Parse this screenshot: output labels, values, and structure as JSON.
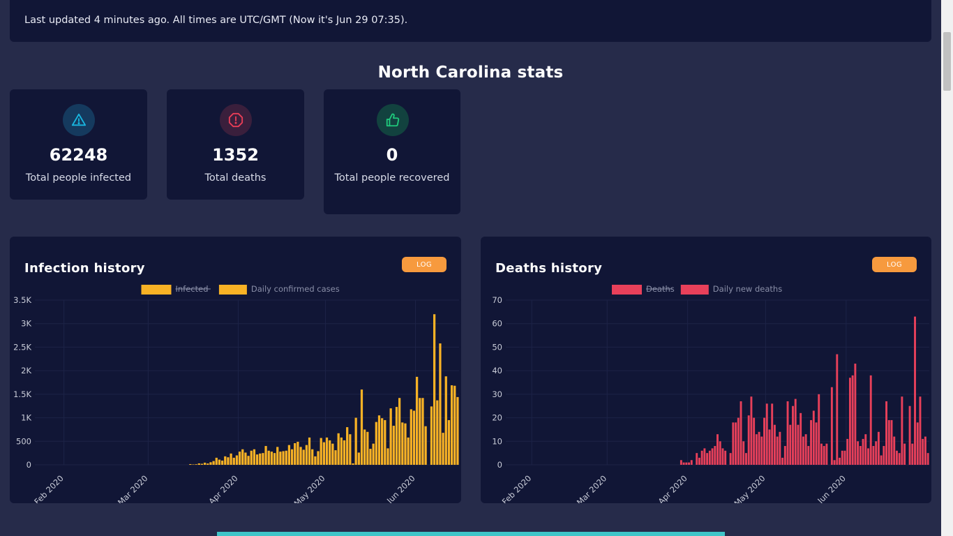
{
  "header": {
    "updated_text": "Last updated 4 minutes ago. All times are UTC/GMT (Now it's Jun 29 07:35)."
  },
  "page_title": "North Carolina stats",
  "stats": {
    "infected": {
      "value": "62248",
      "label": "Total people infected",
      "icon": "warning-icon",
      "color": "#19b6e0"
    },
    "deaths": {
      "value": "1352",
      "label": "Total deaths",
      "icon": "alert-octagon-icon",
      "color": "#ea3e57"
    },
    "recovered": {
      "value": "0",
      "label": "Total people recovered",
      "icon": "thumbs-up-icon",
      "color": "#1fc97c"
    }
  },
  "log_label": "LOG",
  "chart_data": [
    {
      "type": "bar",
      "title": "Infection history",
      "legend": [
        {
          "label": "Infected",
          "hidden": true
        },
        {
          "label": "Daily confirmed cases",
          "hidden": false
        }
      ],
      "color": "#f8b225",
      "x_start": "2020-01-22",
      "x_tick_labels": [
        "Feb 2020",
        "Mar 2020",
        "Apr 2020",
        "May 2020",
        "Jun 2020"
      ],
      "x_tick_dates": [
        "2020-02-01",
        "2020-03-01",
        "2020-04-01",
        "2020-05-01",
        "2020-06-01"
      ],
      "y_tick_labels": [
        "0",
        "500",
        "1K",
        "1.5K",
        "2K",
        "2.5K",
        "3K",
        "3.5K"
      ],
      "ylim": [
        0,
        3500
      ],
      "series": [
        {
          "name": "Daily confirmed cases",
          "values": [
            0,
            0,
            0,
            0,
            0,
            0,
            0,
            0,
            0,
            0,
            0,
            0,
            0,
            0,
            0,
            0,
            0,
            0,
            0,
            0,
            0,
            0,
            0,
            0,
            0,
            0,
            0,
            0,
            0,
            0,
            0,
            0,
            0,
            0,
            0,
            0,
            0,
            0,
            0,
            0,
            0,
            0,
            0,
            0,
            0,
            0,
            0,
            0,
            0,
            0,
            0,
            0,
            0,
            15,
            8,
            12,
            30,
            22,
            45,
            28,
            55,
            80,
            150,
            110,
            90,
            180,
            160,
            240,
            150,
            200,
            280,
            330,
            260,
            190,
            300,
            330,
            220,
            240,
            250,
            400,
            300,
            280,
            250,
            380,
            280,
            290,
            300,
            420,
            330,
            460,
            490,
            380,
            320,
            420,
            580,
            330,
            180,
            290,
            570,
            480,
            580,
            520,
            450,
            310,
            670,
            580,
            520,
            800,
            650,
            30,
            1000,
            260,
            1600,
            750,
            700,
            340,
            450,
            910,
            1050,
            990,
            950,
            350,
            1200,
            830,
            1230,
            1420,
            900,
            880,
            580,
            1180,
            1150,
            1870,
            1420,
            1420,
            820,
            0,
            1240,
            3200,
            1370,
            2580,
            680,
            1880,
            950,
            1690,
            1680,
            1440
          ]
        }
      ]
    },
    {
      "type": "bar",
      "title": "Deaths history",
      "legend": [
        {
          "label": "Deaths",
          "hidden": true
        },
        {
          "label": "Daily new deaths",
          "hidden": false
        }
      ],
      "color": "#e8405a",
      "x_start": "2020-01-22",
      "x_tick_labels": [
        "Feb 2020",
        "Mar 2020",
        "Apr 2020",
        "May 2020",
        "Jun 2020"
      ],
      "x_tick_dates": [
        "2020-02-01",
        "2020-03-01",
        "2020-04-01",
        "2020-05-01",
        "2020-06-01"
      ],
      "y_tick_labels": [
        "0",
        "10",
        "20",
        "30",
        "40",
        "50",
        "60",
        "70"
      ],
      "ylim": [
        0,
        70
      ],
      "series": [
        {
          "name": "Daily new deaths",
          "values": [
            0,
            0,
            0,
            0,
            0,
            0,
            0,
            0,
            0,
            0,
            0,
            0,
            0,
            0,
            0,
            0,
            0,
            0,
            0,
            0,
            0,
            0,
            0,
            0,
            0,
            0,
            0,
            0,
            0,
            0,
            0,
            0,
            0,
            0,
            0,
            0,
            0,
            0,
            0,
            0,
            0,
            0,
            0,
            0,
            0,
            0,
            0,
            0,
            0,
            0,
            0,
            0,
            0,
            0,
            0,
            0,
            0,
            0,
            0,
            0,
            0,
            0,
            0,
            0,
            0,
            0,
            0,
            2,
            1,
            1,
            1,
            2,
            0,
            5,
            3,
            6,
            7,
            5,
            6,
            7,
            8,
            13,
            10,
            7,
            6,
            0,
            5,
            18,
            18,
            20,
            27,
            10,
            5,
            21,
            29,
            20,
            13,
            14,
            12,
            20,
            26,
            15,
            26,
            17,
            12,
            14,
            3,
            8,
            27,
            17,
            25,
            28,
            17,
            22,
            12,
            13,
            8,
            19,
            23,
            18,
            30,
            9,
            8,
            9,
            0,
            33,
            2,
            47,
            3,
            6,
            6,
            11,
            37,
            38,
            43,
            10,
            8,
            11,
            13,
            7,
            38,
            8,
            10,
            14,
            4,
            8,
            27,
            19,
            19,
            12,
            6,
            5,
            29,
            9,
            0,
            25,
            9,
            63,
            18,
            29,
            11,
            12,
            5
          ]
        }
      ]
    }
  ]
}
